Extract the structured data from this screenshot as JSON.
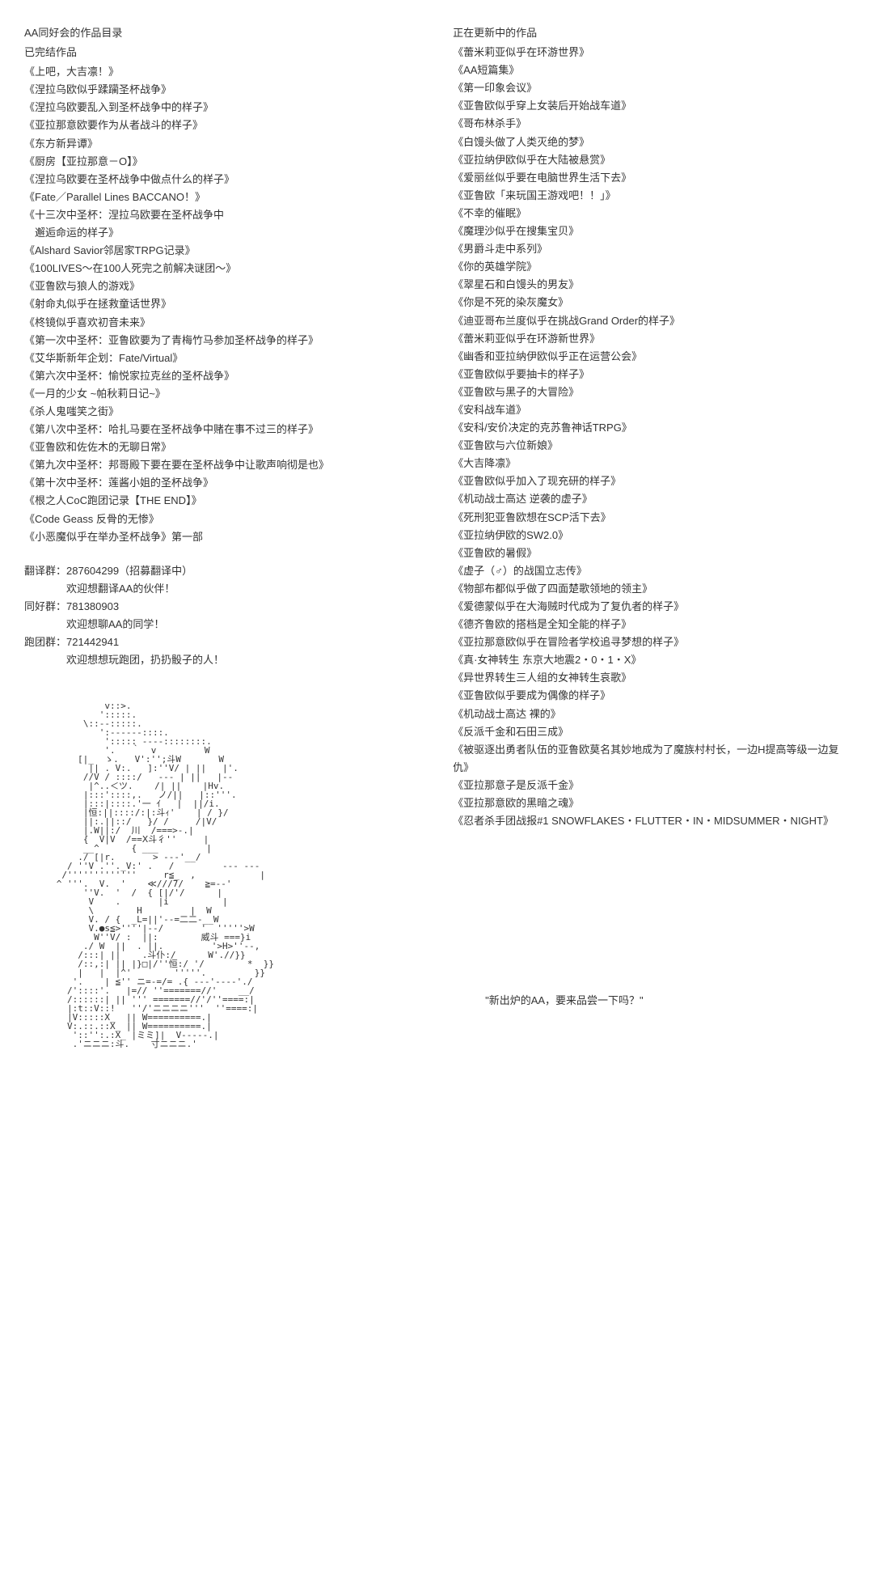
{
  "left": {
    "title1": "AA同好会的作品目录",
    "title2": "已完结作品",
    "completed": [
      "《上吧，大吉凛！》",
      "《涅拉乌欧似乎蹂躏圣杯战争》",
      "《涅拉乌欧要乱入到圣杯战争中的样子》",
      "《亚拉那意欧要作为从者战斗的样子》",
      "《东方新异谭》",
      "《厨房【亚拉那意－O】》",
      "《涅拉乌欧要在圣杯战争中做点什么的样子》",
      "《Fate／Parallel Lines BACCANO！》",
      "《十三次中圣杯：涅拉乌欧要在圣杯战争中",
      "　邂逅命运的样子》",
      "《Alshard Savior邻居家TRPG记录》",
      "《100LIVES～在100人死完之前解决谜团～》",
      "《亚鲁欧与狼人的游戏》",
      "《射命丸似乎在拯救童话世界》",
      "《柊镜似乎喜欢初音未来》",
      "《第一次中圣杯：亚鲁欧要为了青梅竹马参加圣杯战争的样子》",
      "《艾华斯新年企划：Fate/Virtual》",
      "《第六次中圣杯：愉悦家拉克丝的圣杯战争》",
      "《一月的少女 ~帕秋莉日记~》",
      "《杀人鬼嗤笑之街》",
      "《第八次中圣杯：哈扎马要在圣杯战争中赌在事不过三的样子》",
      "《亚鲁欧和佐佐木的无聊日常》",
      "《第九次中圣杯：邦哥殿下要在要在圣杯战争中让歌声响彻是也》",
      "《第十次中圣杯：莲酱小姐的圣杯战争》",
      "《根之人CoC跑团记录【THE END】》",
      "《Code Geass 反骨的无惨》",
      "《小恶魔似乎在举办圣杯战争》第一部"
    ],
    "groups": [
      {
        "label": "翻译群：287604299（招募翻译中）",
        "sub": "欢迎想翻译AA的伙伴！"
      },
      {
        "label": "同好群：781380903",
        "sub": "欢迎想聊AA的同学！"
      },
      {
        "label": "跑团群：721442941",
        "sub": "欢迎想想玩跑团，扔扔骰子的人！"
      }
    ]
  },
  "right": {
    "title": "正在更新中的作品",
    "updating": [
      "《蕾米莉亚似乎在环游世界》",
      "《AA短篇集》",
      "《第一印象会议》",
      "《亚鲁欧似乎穿上女装后开始战车道》",
      "《哥布林杀手》",
      "《白馒头做了人类灭绝的梦》",
      "《亚拉纳伊欧似乎在大陆被悬赏》",
      "《爱丽丝似乎要在电脑世界生活下去》",
      "《亚鲁欧「来玩国王游戏吧！！」》",
      "《不幸的催眠》",
      "《魔理沙似乎在搜集宝贝》",
      "《男爵斗走中系列》",
      "《你的英雄学院》",
      "《翠星石和白馒头的男友》",
      "《你是不死的染灰魔女》",
      "《迪亚哥布兰度似乎在挑战Grand Order的样子》",
      "《蕾米莉亚似乎在环游新世界》",
      "《幽香和亚拉纳伊欧似乎正在运营公会》",
      "《亚鲁欧似乎要抽卡的样子》",
      "《亚鲁欧与黑子的大冒险》",
      "《安科战车道》",
      "《安科/安价决定的克苏鲁神话TRPG》",
      "《亚鲁欧与六位新娘》",
      "《大吉降凛》",
      "《亚鲁欧似乎加入了现充研的样子》",
      "《机动战士高达 逆袭的虚子》",
      "《死刑犯亚鲁欧想在SCP活下去》",
      "《亚拉纳伊欧的SW2.0》",
      "《亚鲁欧的暑假》",
      "《虚子（♂）的战国立志传》",
      "《物部布都似乎做了四面楚歌领地的领主》",
      "《爱德蒙似乎在大海贼时代成为了复仇者的样子》",
      "《德齐鲁欧的搭档是全知全能的样子》",
      "《亚拉那意欧似乎在冒险者学校追寻梦想的样子》",
      "《真·女神转生 东京大地震2・0・1・X》",
      "《异世界转生三人组的女神转生哀歌》",
      "《亚鲁欧似乎要成为偶像的样子》",
      "《机动战士高达 裸的》",
      "《反派千金和石田三成》",
      "《被驱逐出勇者队伍的亚鲁欧莫名其妙地成为了魔族村村长，一边H提高等级一边复仇》",
      "《亚拉那意子是反派千金》",
      "《亚拉那意欧的黑暗之魂》",
      "《忍者杀手团战报#1 SNOWFLAKES・FLUTTER・IN・MIDSUMMER・NIGHT》"
    ],
    "quote": "\"新出炉的AA，要来品尝一下吗？\""
  },
  "ascii": "               v::>.\n              ':::::.\n           \\::--:::::.\n              ':------::::.\n               '::::: ----::::::::.\n               '.   ｀  v         W\n　　　　　　[|_  ゝ.   V':'';斗W       W\n            || . V:.   ]:''V/ | ||   |'.\n           //V / ::::/   --- | ||   |--\n            |^..＜ツ.    /| ||    |Hv.\n           |:::'::::,.   ノ/||   |::'''.\n           |:::|::::.'一 ｲ   |  ||/i.\n           |恒:||::::/:|:斗ｨ'    | / }/\n           ||:.||::/   }/ /     /|V/\n           |.W||:/  川  /===>-.|\n           {  V|V  /==Ⅹ斗彳''     |\n           __^      { ___         |\n          ./ [|r.       > ---'__/\n        / ''V .''._V:' .   /         --- ---\n       /'''''''''''''     r≦_  ,            |\n      ^ '''.  V.  '    ≪///7/    ≧=--'\n           ''V.  '  /  { [|/'/      |\n            V    .       |i          |\n            \\        H         |  W\n            V. / {  _L=||'--=二二-__W\n            V.●s≦>''''|--/       '  '''''>W\n             W''V/ :  ||:        威斗 ===}i\n           ./ W  ||  . ||.         '>H>''--,\n          /:::| ||    .斗仆:/      W'.//}}\n          /::,:| || |}□|/''恒:/ '/        *  }}\n          |   |  |^'        '''''.         }}\n         '.    | ≦'' ニ=-=/= .{ ---'----'./\n        /'::::'.   |=// ''=======//'    __/\n        /::::::| || ''' =======//'/''====:|\n        |:t::V::!   ''/'ニニニニ'''  ''====:|\n        |V:::::X_  || W==========.|\n        V:.::.::X_ || W==========.|\n         '::'':.:X_ |ミミ]|  V-----.|\n         .'ニニニ:斗.    寸ニニニ.'"
}
